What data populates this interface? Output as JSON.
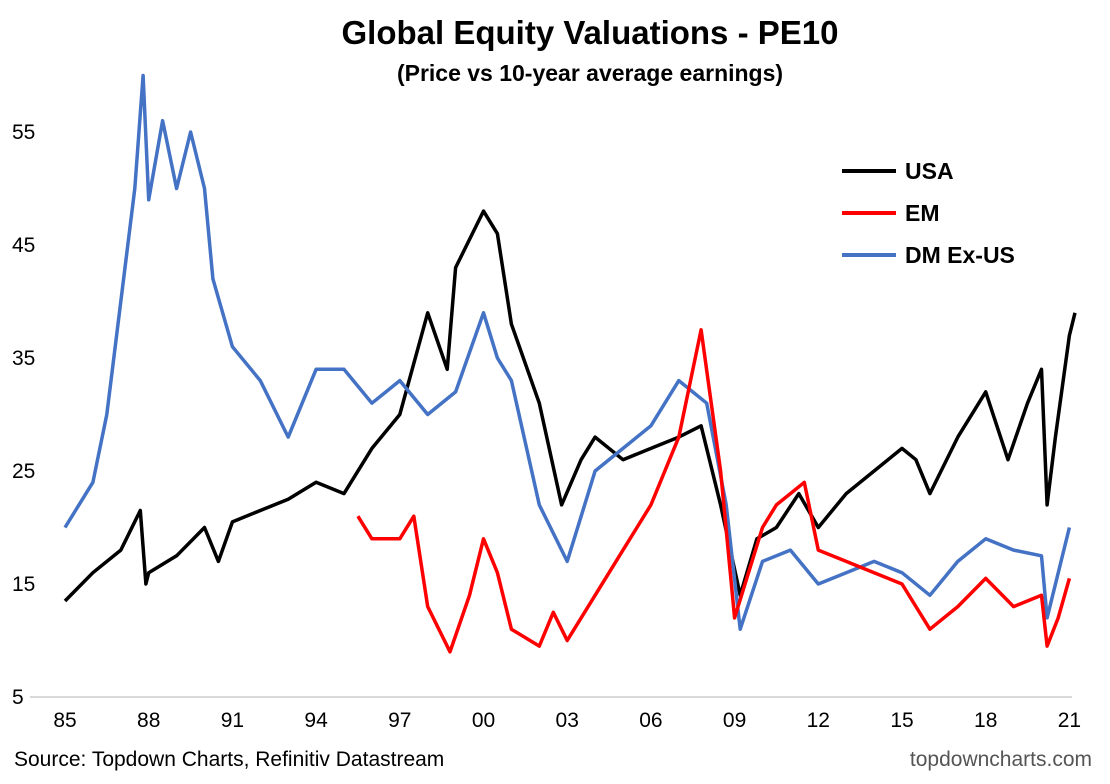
{
  "chart_data": {
    "type": "line",
    "title": "Global Equity Valuations - PE10",
    "subtitle": "(Price vs 10-year average earnings)",
    "xlabel": "",
    "ylabel": "",
    "xlim": [
      1985,
      2021.3
    ],
    "ylim": [
      5,
      61
    ],
    "yticks": [
      5,
      15,
      25,
      35,
      45,
      55
    ],
    "xticks": [
      1985,
      1988,
      1991,
      1994,
      1997,
      2000,
      2003,
      2006,
      2009,
      2012,
      2015,
      2018,
      2021
    ],
    "xtick_labels": [
      "85",
      "88",
      "91",
      "94",
      "97",
      "00",
      "03",
      "06",
      "09",
      "12",
      "15",
      "18",
      "21"
    ],
    "grid": false,
    "legend_position": "top-right",
    "series": [
      {
        "name": "USA",
        "color": "#000000",
        "x": [
          1985,
          1986,
          1987,
          1987.7,
          1987.9,
          1988,
          1989,
          1990,
          1990.5,
          1991,
          1992,
          1993,
          1994,
          1995,
          1996,
          1997,
          1998,
          1998.7,
          1999,
          2000,
          2000.5,
          2001,
          2002,
          2002.8,
          2003.5,
          2004,
          2005,
          2006,
          2007,
          2007.8,
          2008.5,
          2009.2,
          2009.8,
          2010.5,
          2011.3,
          2012,
          2013,
          2014,
          2015,
          2015.5,
          2016,
          2017,
          2018,
          2018.8,
          2019.5,
          2020,
          2020.2,
          2020.5,
          2021,
          2021.2
        ],
        "y": [
          13.5,
          16,
          18,
          21.5,
          15,
          16,
          17.5,
          20,
          17,
          20.5,
          21.5,
          22.5,
          24,
          23,
          27,
          30,
          39,
          34,
          43,
          48,
          46,
          38,
          31,
          22,
          26,
          28,
          26,
          27,
          28,
          29,
          22,
          14,
          19,
          20,
          23,
          20,
          23,
          25,
          27,
          26,
          23,
          28,
          32,
          26,
          31,
          34,
          22,
          28,
          37,
          39
        ]
      },
      {
        "name": "EM",
        "color": "#ff0000",
        "x": [
          1995.5,
          1996,
          1997,
          1997.5,
          1998,
          1998.8,
          1999.5,
          2000,
          2000.5,
          2001,
          2002,
          2002.5,
          2003,
          2004,
          2005,
          2006,
          2007,
          2007.8,
          2008.5,
          2009,
          2009.5,
          2010,
          2010.5,
          2011,
          2011.5,
          2012,
          2013,
          2014,
          2015,
          2016,
          2017,
          2018,
          2019,
          2020,
          2020.2,
          2020.6,
          2021
        ],
        "y": [
          21,
          19,
          19,
          21,
          13,
          9,
          14,
          19,
          16,
          11,
          9.5,
          12.5,
          10,
          14,
          18,
          22,
          28,
          37.5,
          25,
          12,
          16,
          20,
          22,
          23,
          24,
          18,
          17,
          16,
          15,
          11,
          13,
          15.5,
          13,
          14,
          9.5,
          12,
          15.5
        ]
      },
      {
        "name": "DM Ex-US",
        "color": "#4472c4",
        "x": [
          1985,
          1986,
          1986.5,
          1987,
          1987.5,
          1987.8,
          1988,
          1988.5,
          1989,
          1989.5,
          1990,
          1990.3,
          1991,
          1992,
          1993,
          1994,
          1995,
          1996,
          1997,
          1998,
          1999,
          2000,
          2000.5,
          2001,
          2002,
          2003,
          2004,
          2005,
          2006,
          2007,
          2008,
          2008.7,
          2009.2,
          2010,
          2011,
          2012,
          2013,
          2014,
          2015,
          2016,
          2017,
          2018,
          2019,
          2020,
          2020.2,
          2021
        ],
        "y": [
          20,
          24,
          30,
          40,
          50,
          60,
          49,
          56,
          50,
          55,
          50,
          42,
          36,
          33,
          28,
          34,
          34,
          31,
          33,
          30,
          32,
          39,
          35,
          33,
          22,
          17,
          25,
          27,
          29,
          33,
          31,
          22,
          11,
          17,
          18,
          15,
          16,
          17,
          16,
          14,
          17,
          19,
          18,
          17.5,
          12,
          20
        ]
      }
    ],
    "source": "Source: Topdown Charts, Refinitiv Datastream",
    "website": "topdowncharts.com"
  }
}
